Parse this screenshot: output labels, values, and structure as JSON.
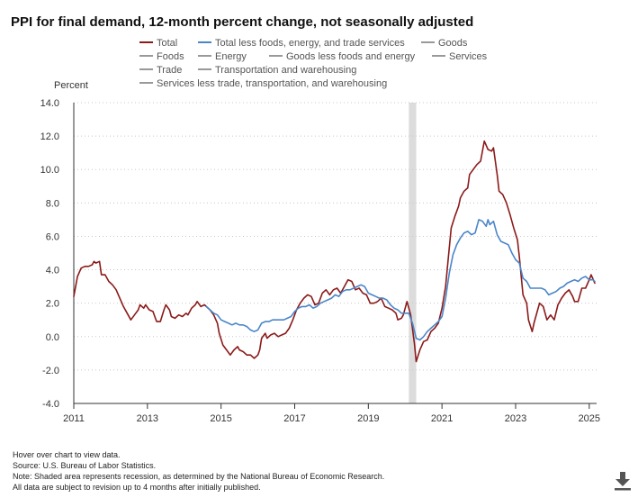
{
  "chart_data": {
    "type": "line",
    "title": "PPI for final demand, 12-month percent change, not seasonally adjusted",
    "ylabel": "Percent",
    "ylim": [
      -4,
      14
    ],
    "yticks": [
      "14.0",
      "12.0",
      "10.0",
      "8.0",
      "6.0",
      "4.0",
      "2.0",
      "0.0",
      "-2.0",
      "-4.0"
    ],
    "ytick_values": [
      14,
      12,
      10,
      8,
      6,
      4,
      2,
      0,
      -2,
      -4
    ],
    "xlim": [
      2011.0,
      2025.2
    ],
    "xticks": [
      "2011",
      "2013",
      "2015",
      "2017",
      "2019",
      "2021",
      "2023",
      "2025"
    ],
    "xtick_values": [
      2011,
      2013,
      2015,
      2017,
      2019,
      2021,
      2023,
      2025
    ],
    "grid": true,
    "legend_position": "top",
    "recession": [
      2020.1,
      2020.3
    ],
    "series": [
      {
        "name": "Total",
        "color": "#8b1a1a",
        "points": [
          [
            2011.0,
            2.4
          ],
          [
            2011.1,
            3.6
          ],
          [
            2011.2,
            4.1
          ],
          [
            2011.3,
            4.2
          ],
          [
            2011.4,
            4.2
          ],
          [
            2011.5,
            4.3
          ],
          [
            2011.55,
            4.5
          ],
          [
            2011.6,
            4.4
          ],
          [
            2011.7,
            4.5
          ],
          [
            2011.75,
            3.7
          ],
          [
            2011.85,
            3.7
          ],
          [
            2011.95,
            3.3
          ],
          [
            2012.05,
            3.1
          ],
          [
            2012.15,
            2.8
          ],
          [
            2012.25,
            2.3
          ],
          [
            2012.35,
            1.8
          ],
          [
            2012.45,
            1.4
          ],
          [
            2012.55,
            1.0
          ],
          [
            2012.65,
            1.3
          ],
          [
            2012.75,
            1.6
          ],
          [
            2012.8,
            1.9
          ],
          [
            2012.9,
            1.7
          ],
          [
            2012.95,
            1.9
          ],
          [
            2013.05,
            1.6
          ],
          [
            2013.15,
            1.5
          ],
          [
            2013.2,
            1.2
          ],
          [
            2013.25,
            0.9
          ],
          [
            2013.35,
            0.9
          ],
          [
            2013.45,
            1.6
          ],
          [
            2013.5,
            1.9
          ],
          [
            2013.6,
            1.6
          ],
          [
            2013.65,
            1.2
          ],
          [
            2013.75,
            1.1
          ],
          [
            2013.85,
            1.3
          ],
          [
            2013.95,
            1.2
          ],
          [
            2014.05,
            1.4
          ],
          [
            2014.1,
            1.3
          ],
          [
            2014.2,
            1.7
          ],
          [
            2014.3,
            1.9
          ],
          [
            2014.35,
            2.1
          ],
          [
            2014.45,
            1.8
          ],
          [
            2014.55,
            1.9
          ],
          [
            2014.6,
            1.8
          ],
          [
            2014.7,
            1.6
          ],
          [
            2014.8,
            1.3
          ],
          [
            2014.9,
            0.8
          ],
          [
            2014.95,
            0.2
          ],
          [
            2015.05,
            -0.5
          ],
          [
            2015.15,
            -0.8
          ],
          [
            2015.25,
            -1.1
          ],
          [
            2015.35,
            -0.8
          ],
          [
            2015.45,
            -0.6
          ],
          [
            2015.5,
            -0.8
          ],
          [
            2015.6,
            -0.9
          ],
          [
            2015.7,
            -1.1
          ],
          [
            2015.8,
            -1.1
          ],
          [
            2015.9,
            -1.3
          ],
          [
            2016.0,
            -1.1
          ],
          [
            2016.05,
            -0.8
          ],
          [
            2016.1,
            -0.1
          ],
          [
            2016.2,
            0.2
          ],
          [
            2016.25,
            -0.1
          ],
          [
            2016.35,
            0.1
          ],
          [
            2016.45,
            0.2
          ],
          [
            2016.55,
            0.0
          ],
          [
            2016.65,
            0.1
          ],
          [
            2016.75,
            0.2
          ],
          [
            2016.85,
            0.5
          ],
          [
            2016.95,
            1.0
          ],
          [
            2017.05,
            1.6
          ],
          [
            2017.15,
            2.0
          ],
          [
            2017.25,
            2.3
          ],
          [
            2017.35,
            2.5
          ],
          [
            2017.45,
            2.4
          ],
          [
            2017.55,
            1.9
          ],
          [
            2017.65,
            2.0
          ],
          [
            2017.75,
            2.6
          ],
          [
            2017.85,
            2.8
          ],
          [
            2017.95,
            2.5
          ],
          [
            2018.05,
            2.8
          ],
          [
            2018.15,
            2.9
          ],
          [
            2018.25,
            2.6
          ],
          [
            2018.35,
            3.0
          ],
          [
            2018.45,
            3.4
          ],
          [
            2018.55,
            3.3
          ],
          [
            2018.65,
            2.8
          ],
          [
            2018.75,
            2.9
          ],
          [
            2018.85,
            2.6
          ],
          [
            2018.95,
            2.5
          ],
          [
            2019.05,
            2.0
          ],
          [
            2019.15,
            2.0
          ],
          [
            2019.25,
            2.1
          ],
          [
            2019.35,
            2.3
          ],
          [
            2019.45,
            1.8
          ],
          [
            2019.55,
            1.7
          ],
          [
            2019.65,
            1.6
          ],
          [
            2019.75,
            1.4
          ],
          [
            2019.8,
            1.0
          ],
          [
            2019.9,
            1.1
          ],
          [
            2019.95,
            1.3
          ],
          [
            2020.05,
            2.1
          ],
          [
            2020.15,
            1.3
          ],
          [
            2020.25,
            -0.4
          ],
          [
            2020.3,
            -1.5
          ],
          [
            2020.4,
            -0.8
          ],
          [
            2020.5,
            -0.3
          ],
          [
            2020.6,
            -0.2
          ],
          [
            2020.7,
            0.3
          ],
          [
            2020.8,
            0.5
          ],
          [
            2020.9,
            0.8
          ],
          [
            2021.0,
            1.7
          ],
          [
            2021.1,
            3.0
          ],
          [
            2021.15,
            4.2
          ],
          [
            2021.25,
            6.5
          ],
          [
            2021.35,
            7.2
          ],
          [
            2021.45,
            7.8
          ],
          [
            2021.5,
            8.3
          ],
          [
            2021.6,
            8.7
          ],
          [
            2021.7,
            8.9
          ],
          [
            2021.75,
            9.7
          ],
          [
            2021.85,
            10.0
          ],
          [
            2021.95,
            10.3
          ],
          [
            2022.05,
            10.5
          ],
          [
            2022.15,
            11.7
          ],
          [
            2022.25,
            11.2
          ],
          [
            2022.35,
            11.1
          ],
          [
            2022.4,
            11.3
          ],
          [
            2022.5,
            9.7
          ],
          [
            2022.55,
            8.7
          ],
          [
            2022.65,
            8.5
          ],
          [
            2022.75,
            8.0
          ],
          [
            2022.85,
            7.3
          ],
          [
            2022.95,
            6.5
          ],
          [
            2023.05,
            5.8
          ],
          [
            2023.1,
            4.8
          ],
          [
            2023.2,
            2.5
          ],
          [
            2023.3,
            2.0
          ],
          [
            2023.35,
            1.0
          ],
          [
            2023.45,
            0.3
          ],
          [
            2023.5,
            0.8
          ],
          [
            2023.6,
            1.6
          ],
          [
            2023.65,
            2.0
          ],
          [
            2023.75,
            1.8
          ],
          [
            2023.85,
            1.0
          ],
          [
            2023.95,
            1.3
          ],
          [
            2024.05,
            1.0
          ],
          [
            2024.15,
            1.9
          ],
          [
            2024.25,
            2.3
          ],
          [
            2024.35,
            2.6
          ],
          [
            2024.45,
            2.8
          ],
          [
            2024.55,
            2.4
          ],
          [
            2024.6,
            2.1
          ],
          [
            2024.7,
            2.1
          ],
          [
            2024.8,
            2.9
          ],
          [
            2024.9,
            2.9
          ],
          [
            2025.0,
            3.4
          ],
          [
            2025.05,
            3.7
          ],
          [
            2025.15,
            3.2
          ]
        ]
      },
      {
        "name": "Total less foods, energy, and trade services",
        "color": "#4a86c8",
        "points": [
          [
            2014.6,
            1.8
          ],
          [
            2014.7,
            1.6
          ],
          [
            2014.8,
            1.4
          ],
          [
            2014.9,
            1.3
          ],
          [
            2015.0,
            1.0
          ],
          [
            2015.1,
            0.9
          ],
          [
            2015.2,
            0.8
          ],
          [
            2015.3,
            0.7
          ],
          [
            2015.4,
            0.8
          ],
          [
            2015.5,
            0.7
          ],
          [
            2015.6,
            0.7
          ],
          [
            2015.7,
            0.6
          ],
          [
            2015.8,
            0.4
          ],
          [
            2015.9,
            0.3
          ],
          [
            2016.0,
            0.4
          ],
          [
            2016.1,
            0.8
          ],
          [
            2016.2,
            0.9
          ],
          [
            2016.3,
            0.9
          ],
          [
            2016.4,
            1.0
          ],
          [
            2016.5,
            1.0
          ],
          [
            2016.6,
            1.0
          ],
          [
            2016.7,
            1.0
          ],
          [
            2016.8,
            1.1
          ],
          [
            2016.9,
            1.2
          ],
          [
            2017.0,
            1.5
          ],
          [
            2017.1,
            1.7
          ],
          [
            2017.2,
            1.8
          ],
          [
            2017.3,
            1.8
          ],
          [
            2017.4,
            1.9
          ],
          [
            2017.5,
            1.7
          ],
          [
            2017.6,
            1.8
          ],
          [
            2017.7,
            2.0
          ],
          [
            2017.8,
            2.1
          ],
          [
            2017.9,
            2.2
          ],
          [
            2018.0,
            2.3
          ],
          [
            2018.1,
            2.5
          ],
          [
            2018.2,
            2.4
          ],
          [
            2018.3,
            2.7
          ],
          [
            2018.4,
            2.8
          ],
          [
            2018.5,
            2.8
          ],
          [
            2018.6,
            2.9
          ],
          [
            2018.7,
            3.0
          ],
          [
            2018.8,
            3.1
          ],
          [
            2018.9,
            3.0
          ],
          [
            2019.0,
            2.6
          ],
          [
            2019.1,
            2.5
          ],
          [
            2019.2,
            2.4
          ],
          [
            2019.3,
            2.3
          ],
          [
            2019.4,
            2.3
          ],
          [
            2019.5,
            2.2
          ],
          [
            2019.6,
            1.9
          ],
          [
            2019.7,
            1.7
          ],
          [
            2019.8,
            1.6
          ],
          [
            2019.9,
            1.4
          ],
          [
            2020.0,
            1.4
          ],
          [
            2020.1,
            1.4
          ],
          [
            2020.2,
            0.8
          ],
          [
            2020.3,
            -0.1
          ],
          [
            2020.4,
            -0.2
          ],
          [
            2020.5,
            0.0
          ],
          [
            2020.6,
            0.3
          ],
          [
            2020.7,
            0.5
          ],
          [
            2020.8,
            0.7
          ],
          [
            2020.9,
            0.9
          ],
          [
            2021.0,
            1.2
          ],
          [
            2021.1,
            2.3
          ],
          [
            2021.2,
            3.8
          ],
          [
            2021.3,
            4.9
          ],
          [
            2021.4,
            5.5
          ],
          [
            2021.5,
            5.9
          ],
          [
            2021.6,
            6.2
          ],
          [
            2021.7,
            6.3
          ],
          [
            2021.8,
            6.1
          ],
          [
            2021.9,
            6.2
          ],
          [
            2022.0,
            7.0
          ],
          [
            2022.1,
            6.9
          ],
          [
            2022.2,
            6.6
          ],
          [
            2022.25,
            7.0
          ],
          [
            2022.3,
            6.7
          ],
          [
            2022.4,
            6.9
          ],
          [
            2022.5,
            6.1
          ],
          [
            2022.6,
            5.7
          ],
          [
            2022.7,
            5.6
          ],
          [
            2022.8,
            5.5
          ],
          [
            2022.9,
            5.0
          ],
          [
            2023.0,
            4.6
          ],
          [
            2023.1,
            4.4
          ],
          [
            2023.2,
            3.5
          ],
          [
            2023.3,
            3.3
          ],
          [
            2023.4,
            2.9
          ],
          [
            2023.5,
            2.9
          ],
          [
            2023.6,
            2.9
          ],
          [
            2023.7,
            2.9
          ],
          [
            2023.8,
            2.8
          ],
          [
            2023.9,
            2.5
          ],
          [
            2024.0,
            2.6
          ],
          [
            2024.1,
            2.7
          ],
          [
            2024.2,
            2.9
          ],
          [
            2024.3,
            3.0
          ],
          [
            2024.4,
            3.2
          ],
          [
            2024.5,
            3.3
          ],
          [
            2024.6,
            3.4
          ],
          [
            2024.7,
            3.3
          ],
          [
            2024.8,
            3.5
          ],
          [
            2024.9,
            3.6
          ],
          [
            2025.0,
            3.4
          ],
          [
            2025.1,
            3.4
          ],
          [
            2025.15,
            3.3
          ]
        ]
      }
    ],
    "legend": [
      {
        "label": "Total",
        "color": "#8b1a1a"
      },
      {
        "label": "Total less foods, energy, and trade services",
        "color": "#4a86c8"
      },
      {
        "label": "Goods",
        "color": "#999999"
      },
      {
        "label": "Foods",
        "color": "#999999"
      },
      {
        "label": "Energy",
        "color": "#999999"
      },
      {
        "label": "Goods less foods and energy",
        "color": "#999999"
      },
      {
        "label": "Services",
        "color": "#999999"
      },
      {
        "label": "Trade",
        "color": "#999999"
      },
      {
        "label": "Transportation and warehousing",
        "color": "#999999"
      },
      {
        "label": "Services less trade, transportation, and warehousing",
        "color": "#999999"
      }
    ]
  },
  "footer": {
    "hover_note": "Hover over chart to view data.",
    "source": "Source: U.S. Bureau of Labor Statistics.",
    "note": "Note: Shaded area represents recession, as determined by the National Bureau of Economic Research.",
    "revision": "All data are subject to revision up to 4 months after initially published."
  },
  "icons": {
    "download": "download-icon"
  }
}
